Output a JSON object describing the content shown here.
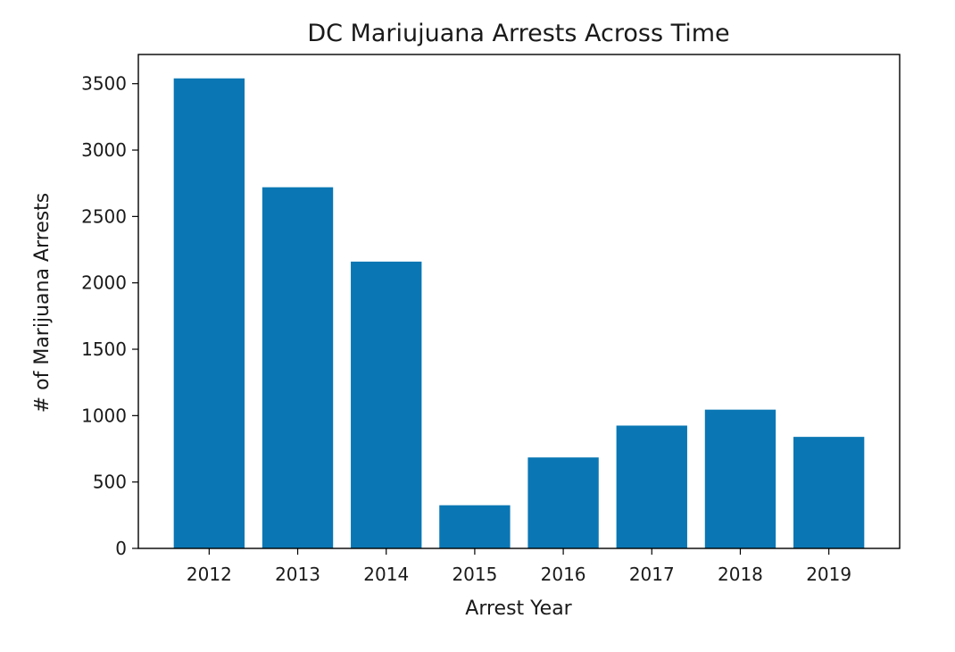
{
  "chart_data": {
    "type": "bar",
    "title": "DC Mariujuana Arrests Across Time",
    "xlabel": "Arrest Year",
    "ylabel": "# of Marijuana Arrests",
    "categories": [
      "2012",
      "2013",
      "2014",
      "2015",
      "2016",
      "2017",
      "2018",
      "2019"
    ],
    "values": [
      3540,
      2720,
      2160,
      325,
      685,
      925,
      1045,
      840
    ],
    "ylim": [
      0,
      3720
    ],
    "yticks": [
      0,
      500,
      1000,
      1500,
      2000,
      2500,
      3000,
      3500
    ],
    "bar_color": "#0a77b4",
    "grid": false,
    "legend": "none"
  }
}
